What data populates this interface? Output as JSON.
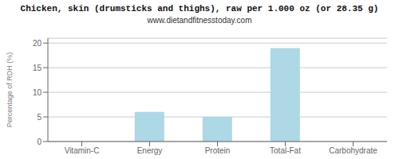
{
  "chart_data": {
    "type": "bar",
    "title": "Chicken, skin (drumsticks and thighs), raw per 1.000 oz (or 28.35 g)",
    "subtitle": "www.dietandfitnesstoday.com",
    "categories": [
      "Vitamin-C",
      "Energy",
      "Protein",
      "Total-Fat",
      "Carbohydrate"
    ],
    "values": [
      0,
      6.0,
      5.0,
      19.0,
      0.0
    ],
    "color": "#ADD8E6",
    "ylabel": "Percentage of RDH (%)",
    "ylim": [
      0,
      21
    ],
    "yticks": [
      0,
      5,
      10,
      15,
      20
    ],
    "grid": true
  }
}
